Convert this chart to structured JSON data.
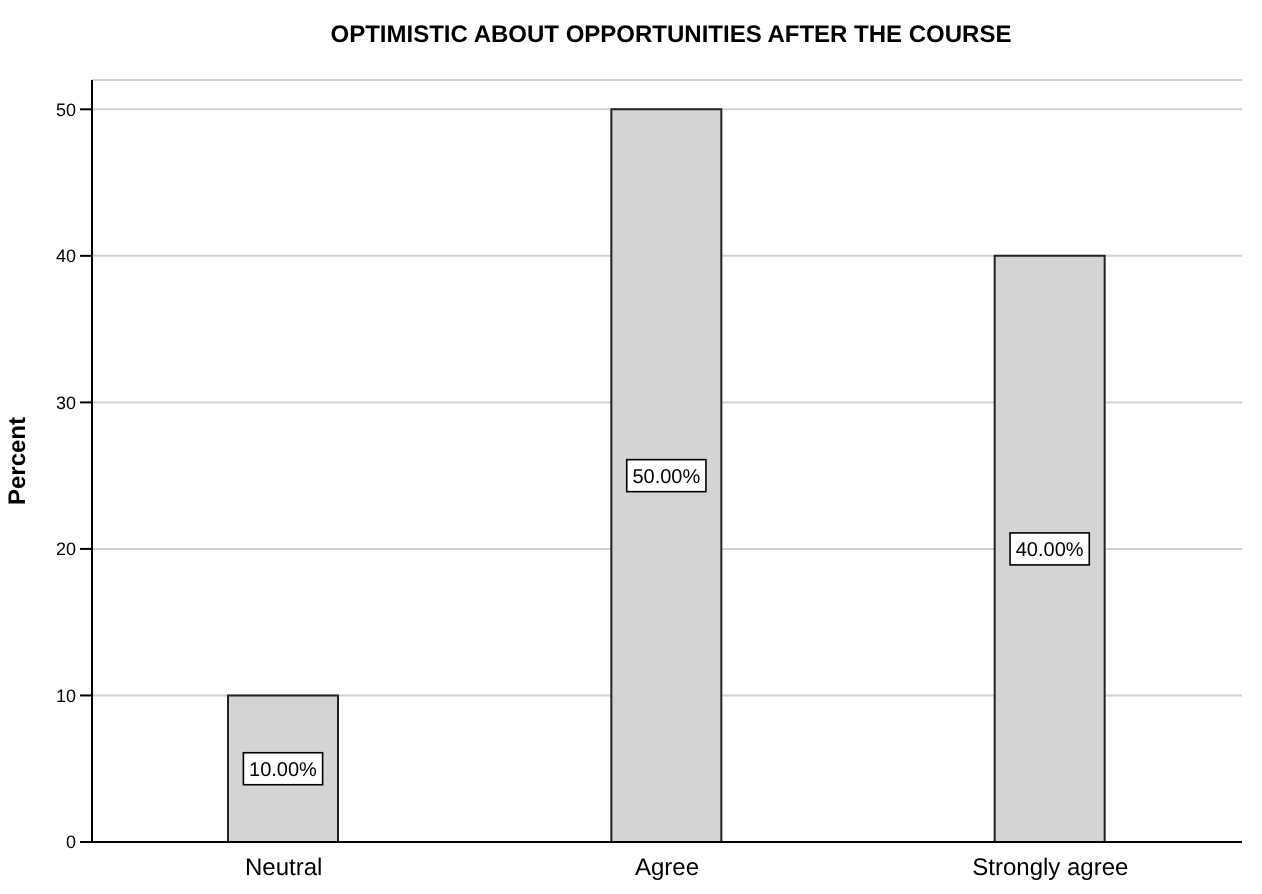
{
  "chart_data": {
    "type": "bar",
    "title": "OPTIMISTIC ABOUT OPPORTUNITIES AFTER THE COURSE",
    "ylabel": "Percent",
    "categories": [
      "Neutral",
      "Agree",
      "Strongly agree"
    ],
    "values": [
      10,
      50,
      40
    ],
    "value_labels": [
      "10.00%",
      "50.00%",
      "40.00%"
    ],
    "color": "#d4d4d4",
    "ylim": [
      0,
      52
    ],
    "yticks": [
      0,
      10,
      20,
      30,
      40,
      50
    ],
    "grid": "y"
  }
}
